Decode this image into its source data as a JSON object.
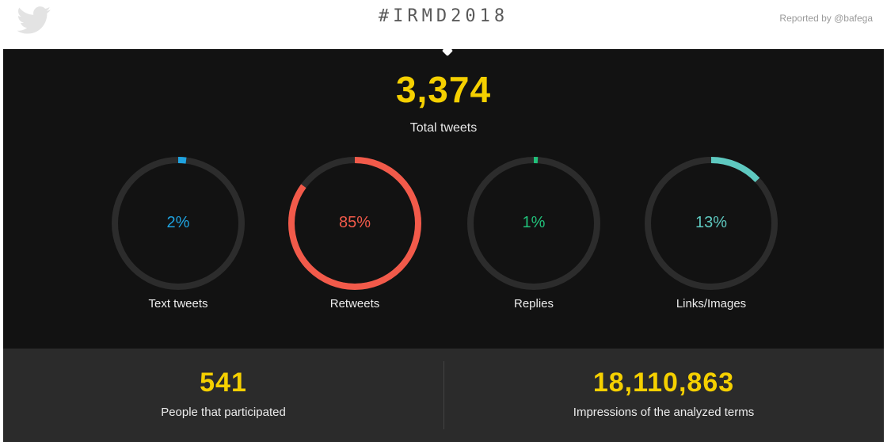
{
  "header": {
    "hashtag": "#IRMD2018",
    "reported_by": "Reported by @bafega",
    "logo_icon": "twitter-bird-icon"
  },
  "total": {
    "value": "3,374",
    "label": "Total tweets"
  },
  "gauges": [
    {
      "percent_text": "2%",
      "label": "Text tweets",
      "value": 0.02,
      "color": "#1fa3e0"
    },
    {
      "percent_text": "85%",
      "label": "Retweets",
      "value": 0.85,
      "color": "#f25a4a"
    },
    {
      "percent_text": "1%",
      "label": "Replies",
      "value": 0.01,
      "color": "#21c07a"
    },
    {
      "percent_text": "13%",
      "label": "Links/Images",
      "value": 0.13,
      "color": "#5ec9c0"
    }
  ],
  "stats": [
    {
      "value": "541",
      "label": "People that participated"
    },
    {
      "value": "18,110,863",
      "label": "Impressions of the analyzed terms"
    }
  ],
  "colors": {
    "accent": "#f5d000",
    "track": "#2c2c2c"
  }
}
